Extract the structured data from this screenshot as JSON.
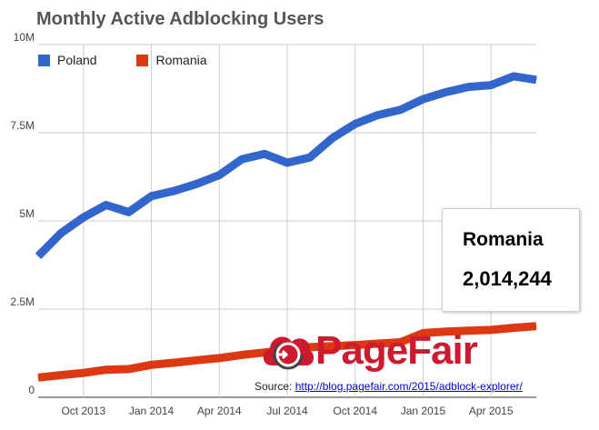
{
  "chart_data": {
    "type": "line",
    "title": "Monthly Active Adblocking Users",
    "xlabel": "",
    "ylabel": "",
    "ylim": [
      0,
      10000000
    ],
    "y_ticks": [
      {
        "value": 0,
        "label": "0"
      },
      {
        "value": 2500000,
        "label": "2.5M"
      },
      {
        "value": 5000000,
        "label": "5M"
      },
      {
        "value": 7500000,
        "label": "7.5M"
      },
      {
        "value": 10000000,
        "label": "10M"
      }
    ],
    "x": [
      "2013-08",
      "2013-09",
      "2013-10",
      "2013-11",
      "2013-12",
      "2014-01",
      "2014-02",
      "2014-03",
      "2014-04",
      "2014-05",
      "2014-06",
      "2014-07",
      "2014-08",
      "2014-09",
      "2014-10",
      "2014-11",
      "2014-12",
      "2015-01",
      "2015-02",
      "2015-03",
      "2015-04",
      "2015-05",
      "2015-06"
    ],
    "x_tick_labels": [
      {
        "index": 2,
        "label": "Oct 2013"
      },
      {
        "index": 5,
        "label": "Jan 2014"
      },
      {
        "index": 8,
        "label": "Apr 2014"
      },
      {
        "index": 11,
        "label": "Jul 2014"
      },
      {
        "index": 14,
        "label": "Oct 2014"
      },
      {
        "index": 17,
        "label": "Jan 2015"
      },
      {
        "index": 20,
        "label": "Apr 2015"
      }
    ],
    "grid": true,
    "legend_position": "top-left",
    "series": [
      {
        "name": "Poland",
        "color": "#3366cc",
        "values": [
          4000000,
          4650000,
          5100000,
          5450000,
          5250000,
          5700000,
          5850000,
          6050000,
          6300000,
          6750000,
          6900000,
          6650000,
          6800000,
          7350000,
          7750000,
          8000000,
          8150000,
          8450000,
          8650000,
          8800000,
          8850000,
          9100000,
          9000000
        ]
      },
      {
        "name": "Romania",
        "color": "#dc3912",
        "values": [
          560000,
          630000,
          690000,
          780000,
          800000,
          920000,
          980000,
          1050000,
          1110000,
          1200000,
          1270000,
          1350000,
          1420000,
          1450000,
          1480000,
          1520000,
          1560000,
          1820000,
          1860000,
          1890000,
          1910000,
          1970000,
          2014244
        ]
      }
    ],
    "tooltip": {
      "series": "Romania",
      "value": "2,014,244"
    }
  },
  "brand": {
    "name": "PageFair",
    "color": "#cc1a2f"
  },
  "source": {
    "label": "Source:",
    "url_text": "http://blog.pagefair.com/2015/adblock-explorer/"
  }
}
